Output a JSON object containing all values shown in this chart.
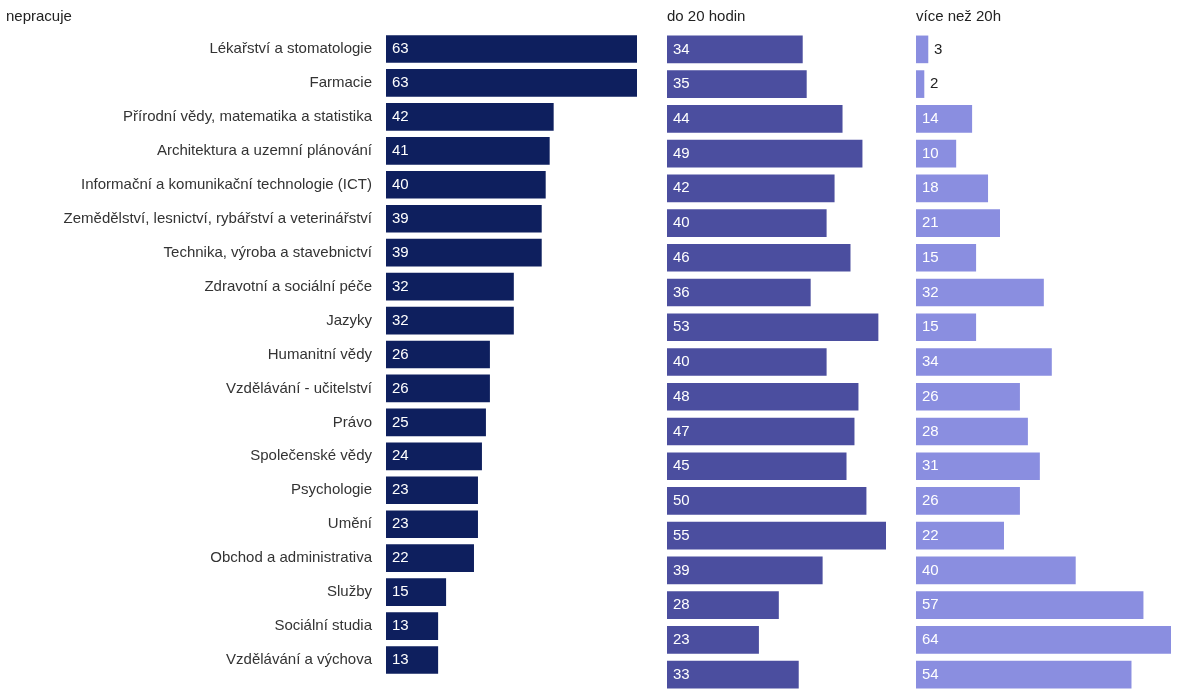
{
  "chart_data": [
    {
      "type": "bar",
      "orientation": "horizontal",
      "title": "nepracuje",
      "color": "#0e1f5e",
      "data_labels": true,
      "tick_labels": "y",
      "categories": [
        "Lékařství a stomatologie",
        "Farmacie",
        "Přírodní vědy, matematika a statistika",
        "Architektura a uzemní plánování",
        "Informační a komunikační technologie (ICT)",
        "Zemědělství, lesnictví, rybářství a veterinářství",
        "Technika, výroba a stavebnictví",
        "Zdravotní a sociální péče",
        "Jazyky",
        "Humanitní vědy",
        "Vzdělávání - učitelství",
        "Právo",
        "Společenské vědy",
        "Psychologie",
        "Umění",
        "Obchod a administrativa",
        "Služby",
        "Sociální studia",
        "Vzdělávání a výchova"
      ],
      "values": [
        63,
        63,
        42,
        41,
        40,
        39,
        39,
        32,
        32,
        26,
        26,
        25,
        24,
        23,
        23,
        22,
        15,
        13,
        13
      ]
    },
    {
      "type": "bar",
      "orientation": "horizontal",
      "title": "do 20 hodin",
      "color": "#4b4e9f",
      "data_labels": true,
      "tick_labels": false,
      "categories": [
        null,
        null,
        null,
        null,
        null,
        null,
        null,
        null,
        null,
        null,
        null,
        null,
        null,
        null,
        null,
        null,
        null,
        null,
        null
      ],
      "values": [
        34,
        35,
        44,
        49,
        42,
        40,
        46,
        36,
        53,
        40,
        48,
        47,
        45,
        50,
        55,
        39,
        28,
        23,
        33
      ]
    },
    {
      "type": "bar",
      "orientation": "horizontal",
      "title": "více než 20h",
      "color": "#8a8ee0",
      "data_labels": true,
      "tick_labels": false,
      "categories": [
        null,
        null,
        null,
        null,
        null,
        null,
        null,
        null,
        null,
        null,
        null,
        null,
        null,
        null,
        null,
        null,
        null,
        null,
        null
      ],
      "values": [
        3,
        2,
        14,
        10,
        18,
        21,
        15,
        32,
        15,
        34,
        26,
        28,
        31,
        26,
        22,
        40,
        57,
        64,
        54
      ]
    }
  ]
}
